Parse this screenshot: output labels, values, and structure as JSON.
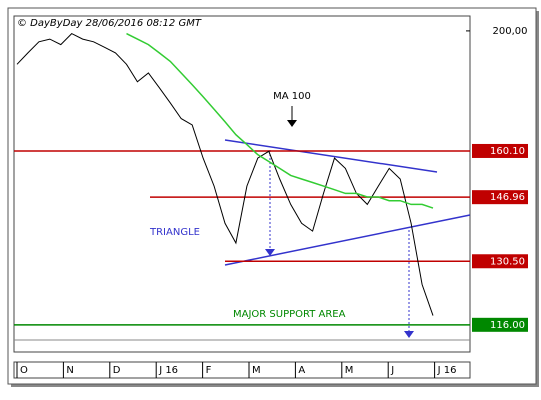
{
  "chart_data": {
    "type": "line",
    "title": "© DayByDay 28/06/2016  08:12 GMT",
    "x_labels": [
      "O",
      "N",
      "D",
      "J 16",
      "F",
      "M",
      "A",
      "M",
      "J",
      "J 16"
    ],
    "series": [
      {
        "color": "#000000",
        "values": [
          188,
          192,
          196,
          197,
          195,
          199,
          197,
          196,
          194,
          192,
          188,
          182,
          185,
          180,
          175,
          170,
          168,
          158,
          150,
          140,
          135,
          150,
          158,
          160,
          152,
          145,
          140,
          138,
          148,
          158,
          155,
          148,
          145,
          150,
          155,
          152,
          140,
          125,
          118
        ]
      },
      {
        "color": "#33cc33",
        "values": [
          null,
          null,
          null,
          null,
          null,
          null,
          null,
          null,
          null,
          null,
          199,
          197,
          195,
          192,
          189,
          185,
          181,
          177,
          173,
          169,
          165,
          162,
          159,
          157,
          155,
          153,
          152,
          151,
          150,
          149,
          148,
          148,
          147,
          147,
          146,
          146,
          145,
          145,
          144
        ]
      }
    ],
    "ylim": [
      110.3,
      205.6
    ],
    "log_scale": true,
    "yticks": [
      {
        "value": 200,
        "label": "200,00"
      }
    ],
    "levels": [
      {
        "value": 160.1,
        "label": "160.10",
        "color": "#c00000"
      },
      {
        "value": 146.96,
        "label": "146.96",
        "color": "#c00000"
      },
      {
        "value": 130.5,
        "label": "130.50",
        "color": "#c00000"
      },
      {
        "value": 116,
        "label": "116.00",
        "color": "#008800"
      }
    ],
    "annotations": [
      "MA 100",
      "TRIANGLE",
      "MAJOR SUPPORT AREA"
    ]
  }
}
